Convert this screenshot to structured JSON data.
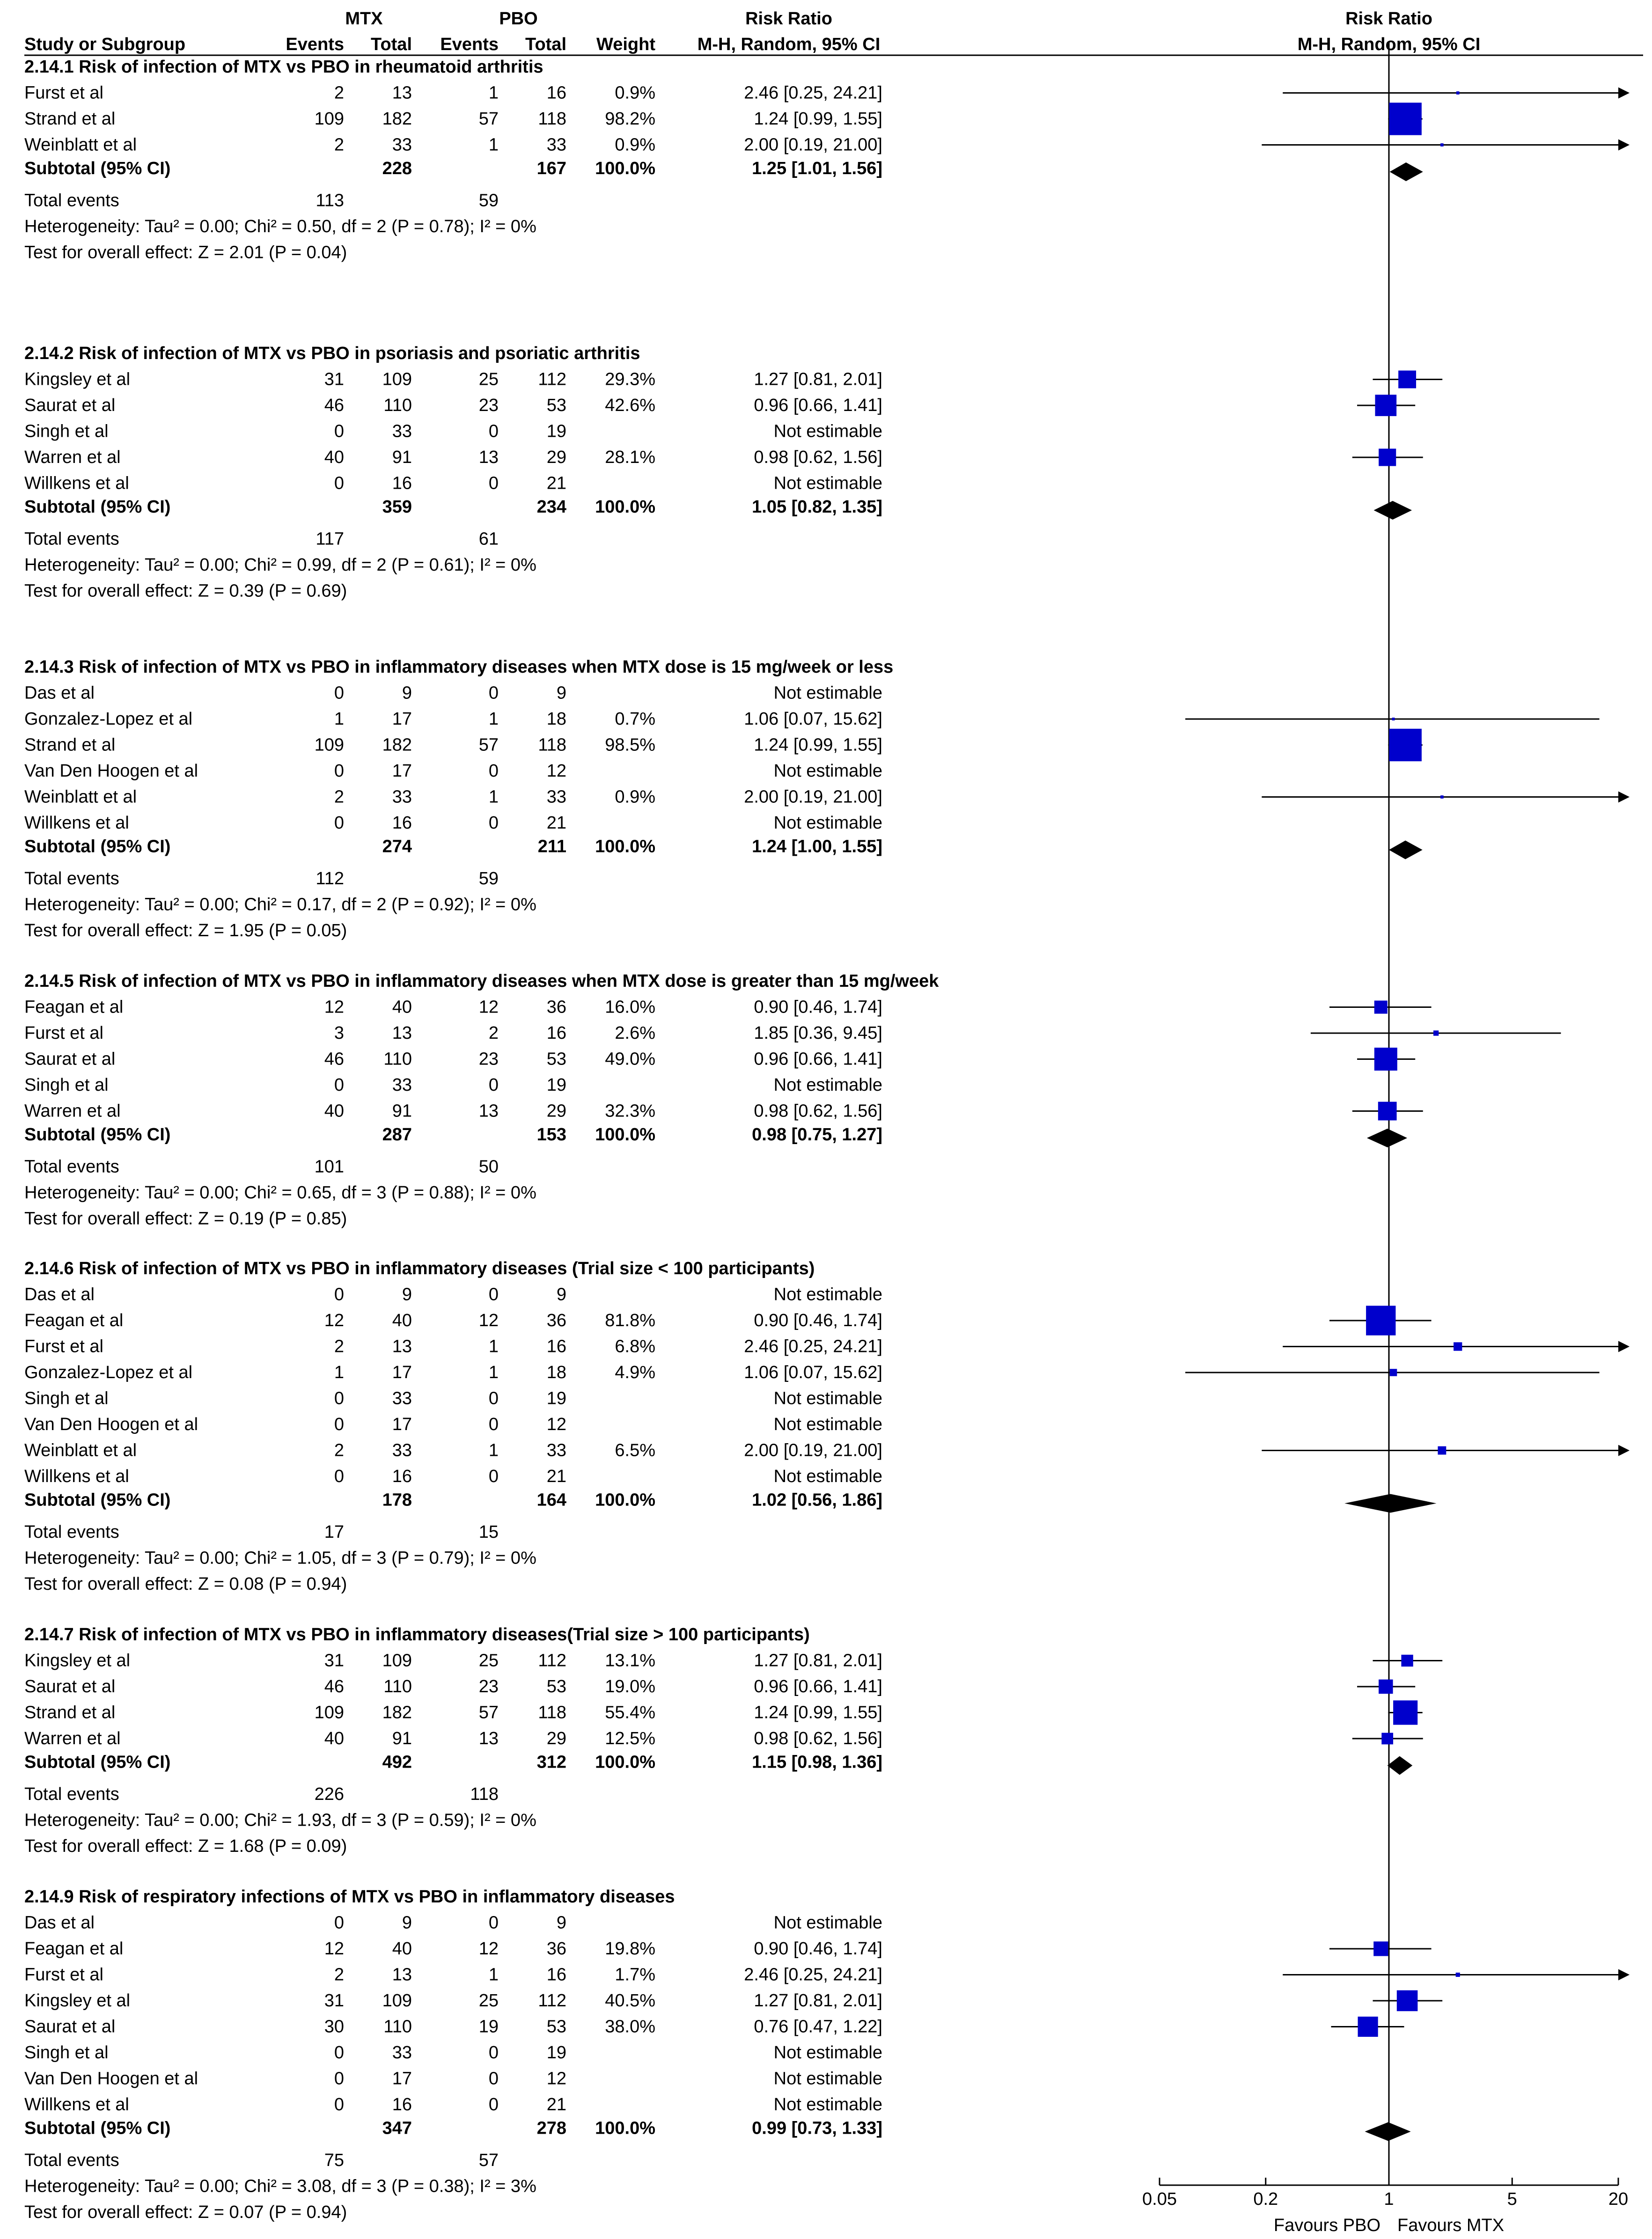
{
  "chart_data": {
    "type": "forest",
    "headers": {
      "study": "Study or Subgroup",
      "group1": "MTX",
      "group2": "PBO",
      "events": "Events",
      "total": "Total",
      "weight": "Weight",
      "rr_title": "Risk Ratio",
      "rr_method": "M-H, Random, 95% CI"
    },
    "axis": {
      "scale": "log",
      "ticks": [
        "0.05",
        "0.2",
        "1",
        "5",
        "20"
      ],
      "tick_values": [
        0.05,
        0.2,
        1,
        5,
        20
      ],
      "range": [
        0.05,
        20
      ],
      "left_label": "Favours PBO",
      "right_label": "Favours MTX"
    },
    "subgroups": [
      {
        "title": "2.14.1 Risk of infection of MTX vs PBO in rheumatoid arthritis",
        "studies": [
          {
            "name": "Furst et al",
            "e1": "2",
            "n1": "13",
            "e2": "1",
            "n2": "16",
            "weight": "0.9%",
            "ci": "2.46 [0.25, 24.21]",
            "rr": 2.46,
            "lo": 0.25,
            "hi": 24.21,
            "w": 0.9
          },
          {
            "name": "Strand et al",
            "e1": "109",
            "n1": "182",
            "e2": "57",
            "n2": "118",
            "weight": "98.2%",
            "ci": "1.24 [0.99, 1.55]",
            "rr": 1.24,
            "lo": 0.99,
            "hi": 1.55,
            "w": 98.2
          },
          {
            "name": "Weinblatt et al",
            "e1": "2",
            "n1": "33",
            "e2": "1",
            "n2": "33",
            "weight": "0.9%",
            "ci": "2.00 [0.19, 21.00]",
            "rr": 2.0,
            "lo": 0.19,
            "hi": 21.0,
            "w": 0.9
          }
        ],
        "subtotal": {
          "label": "Subtotal (95% CI)",
          "n1": "228",
          "n2": "167",
          "weight": "100.0%",
          "ci": "1.25 [1.01, 1.56]",
          "rr": 1.25,
          "lo": 1.01,
          "hi": 1.56
        },
        "total_events": {
          "label": "Total events",
          "e1": "113",
          "e2": "59"
        },
        "heterogeneity": "Heterogeneity: Tau² = 0.00; Chi² = 0.50, df = 2 (P = 0.78); I² = 0%",
        "overall": "Test for overall effect: Z = 2.01 (P = 0.04)"
      },
      {
        "title": "2.14.2 Risk of infection of MTX vs PBO in psoriasis and psoriatic arthritis",
        "studies": [
          {
            "name": "Kingsley et al",
            "e1": "31",
            "n1": "109",
            "e2": "25",
            "n2": "112",
            "weight": "29.3%",
            "ci": "1.27 [0.81, 2.01]",
            "rr": 1.27,
            "lo": 0.81,
            "hi": 2.01,
            "w": 29.3
          },
          {
            "name": "Saurat et al",
            "e1": "46",
            "n1": "110",
            "e2": "23",
            "n2": "53",
            "weight": "42.6%",
            "ci": "0.96 [0.66, 1.41]",
            "rr": 0.96,
            "lo": 0.66,
            "hi": 1.41,
            "w": 42.6
          },
          {
            "name": "Singh et al",
            "e1": "0",
            "n1": "33",
            "e2": "0",
            "n2": "19",
            "weight": "",
            "ci": "Not estimable"
          },
          {
            "name": "Warren et al",
            "e1": "40",
            "n1": "91",
            "e2": "13",
            "n2": "29",
            "weight": "28.1%",
            "ci": "0.98 [0.62, 1.56]",
            "rr": 0.98,
            "lo": 0.62,
            "hi": 1.56,
            "w": 28.1
          },
          {
            "name": "Willkens et al",
            "e1": "0",
            "n1": "16",
            "e2": "0",
            "n2": "21",
            "weight": "",
            "ci": "Not estimable"
          }
        ],
        "subtotal": {
          "label": "Subtotal (95% CI)",
          "n1": "359",
          "n2": "234",
          "weight": "100.0%",
          "ci": "1.05 [0.82, 1.35]",
          "rr": 1.05,
          "lo": 0.82,
          "hi": 1.35
        },
        "total_events": {
          "label": "Total events",
          "e1": "117",
          "e2": "61"
        },
        "heterogeneity": "Heterogeneity: Tau² = 0.00; Chi² = 0.99, df = 2 (P = 0.61); I² = 0%",
        "overall": "Test for overall effect: Z = 0.39 (P = 0.69)"
      },
      {
        "title": "2.14.3 Risk of infection of MTX vs PBO in inflammatory diseases when MTX dose is 15 mg/week or less",
        "studies": [
          {
            "name": "Das et al",
            "e1": "0",
            "n1": "9",
            "e2": "0",
            "n2": "9",
            "weight": "",
            "ci": "Not estimable"
          },
          {
            "name": "Gonzalez-Lopez et al",
            "e1": "1",
            "n1": "17",
            "e2": "1",
            "n2": "18",
            "weight": "0.7%",
            "ci": "1.06 [0.07, 15.62]",
            "rr": 1.06,
            "lo": 0.07,
            "hi": 15.62,
            "w": 0.7
          },
          {
            "name": "Strand et al",
            "e1": "109",
            "n1": "182",
            "e2": "57",
            "n2": "118",
            "weight": "98.5%",
            "ci": "1.24 [0.99, 1.55]",
            "rr": 1.24,
            "lo": 0.99,
            "hi": 1.55,
            "w": 98.5
          },
          {
            "name": "Van Den Hoogen et al",
            "e1": "0",
            "n1": "17",
            "e2": "0",
            "n2": "12",
            "weight": "",
            "ci": "Not estimable"
          },
          {
            "name": "Weinblatt et al",
            "e1": "2",
            "n1": "33",
            "e2": "1",
            "n2": "33",
            "weight": "0.9%",
            "ci": "2.00 [0.19, 21.00]",
            "rr": 2.0,
            "lo": 0.19,
            "hi": 21.0,
            "w": 0.9
          },
          {
            "name": "Willkens et al",
            "e1": "0",
            "n1": "16",
            "e2": "0",
            "n2": "21",
            "weight": "",
            "ci": "Not estimable"
          }
        ],
        "subtotal": {
          "label": "Subtotal (95% CI)",
          "n1": "274",
          "n2": "211",
          "weight": "100.0%",
          "ci": "1.24 [1.00, 1.55]",
          "rr": 1.24,
          "lo": 1.0,
          "hi": 1.55
        },
        "total_events": {
          "label": "Total events",
          "e1": "112",
          "e2": "59"
        },
        "heterogeneity": "Heterogeneity: Tau² = 0.00; Chi² = 0.17, df = 2 (P = 0.92); I² = 0%",
        "overall": "Test for overall effect: Z = 1.95 (P = 0.05)"
      },
      {
        "title": "2.14.5 Risk of infection of MTX vs PBO in inflammatory diseases when MTX dose is greater than 15 mg/week",
        "studies": [
          {
            "name": "Feagan et al",
            "e1": "12",
            "n1": "40",
            "e2": "12",
            "n2": "36",
            "weight": "16.0%",
            "ci": "0.90 [0.46, 1.74]",
            "rr": 0.9,
            "lo": 0.46,
            "hi": 1.74,
            "w": 16.0
          },
          {
            "name": "Furst et al",
            "e1": "3",
            "n1": "13",
            "e2": "2",
            "n2": "16",
            "weight": "2.6%",
            "ci": "1.85 [0.36, 9.45]",
            "rr": 1.85,
            "lo": 0.36,
            "hi": 9.45,
            "w": 2.6
          },
          {
            "name": "Saurat et al",
            "e1": "46",
            "n1": "110",
            "e2": "23",
            "n2": "53",
            "weight": "49.0%",
            "ci": "0.96 [0.66, 1.41]",
            "rr": 0.96,
            "lo": 0.66,
            "hi": 1.41,
            "w": 49.0
          },
          {
            "name": "Singh et al",
            "e1": "0",
            "n1": "33",
            "e2": "0",
            "n2": "19",
            "weight": "",
            "ci": "Not estimable"
          },
          {
            "name": "Warren et al",
            "e1": "40",
            "n1": "91",
            "e2": "13",
            "n2": "29",
            "weight": "32.3%",
            "ci": "0.98 [0.62, 1.56]",
            "rr": 0.98,
            "lo": 0.62,
            "hi": 1.56,
            "w": 32.3
          }
        ],
        "subtotal": {
          "label": "Subtotal (95% CI)",
          "n1": "287",
          "n2": "153",
          "weight": "100.0%",
          "ci": "0.98 [0.75, 1.27]",
          "rr": 0.98,
          "lo": 0.75,
          "hi": 1.27
        },
        "total_events": {
          "label": "Total events",
          "e1": "101",
          "e2": "50"
        },
        "heterogeneity": "Heterogeneity: Tau² = 0.00; Chi² = 0.65, df = 3 (P = 0.88); I² = 0%",
        "overall": "Test for overall effect: Z = 0.19 (P = 0.85)"
      },
      {
        "title": "2.14.6 Risk of infection of MTX vs PBO in inflammatory diseases (Trial size < 100 participants)",
        "studies": [
          {
            "name": "Das et al",
            "e1": "0",
            "n1": "9",
            "e2": "0",
            "n2": "9",
            "weight": "",
            "ci": "Not estimable"
          },
          {
            "name": "Feagan et al",
            "e1": "12",
            "n1": "40",
            "e2": "12",
            "n2": "36",
            "weight": "81.8%",
            "ci": "0.90 [0.46, 1.74]",
            "rr": 0.9,
            "lo": 0.46,
            "hi": 1.74,
            "w": 81.8
          },
          {
            "name": "Furst et al",
            "e1": "2",
            "n1": "13",
            "e2": "1",
            "n2": "16",
            "weight": "6.8%",
            "ci": "2.46 [0.25, 24.21]",
            "rr": 2.46,
            "lo": 0.25,
            "hi": 24.21,
            "w": 6.8
          },
          {
            "name": "Gonzalez-Lopez et al",
            "e1": "1",
            "n1": "17",
            "e2": "1",
            "n2": "18",
            "weight": "4.9%",
            "ci": "1.06 [0.07, 15.62]",
            "rr": 1.06,
            "lo": 0.07,
            "hi": 15.62,
            "w": 4.9
          },
          {
            "name": "Singh et al",
            "e1": "0",
            "n1": "33",
            "e2": "0",
            "n2": "19",
            "weight": "",
            "ci": "Not estimable"
          },
          {
            "name": "Van Den Hoogen et al",
            "e1": "0",
            "n1": "17",
            "e2": "0",
            "n2": "12",
            "weight": "",
            "ci": "Not estimable"
          },
          {
            "name": "Weinblatt et al",
            "e1": "2",
            "n1": "33",
            "e2": "1",
            "n2": "33",
            "weight": "6.5%",
            "ci": "2.00 [0.19, 21.00]",
            "rr": 2.0,
            "lo": 0.19,
            "hi": 21.0,
            "w": 6.5
          },
          {
            "name": "Willkens et al",
            "e1": "0",
            "n1": "16",
            "e2": "0",
            "n2": "21",
            "weight": "",
            "ci": "Not estimable"
          }
        ],
        "subtotal": {
          "label": "Subtotal (95% CI)",
          "n1": "178",
          "n2": "164",
          "weight": "100.0%",
          "ci": "1.02 [0.56, 1.86]",
          "rr": 1.02,
          "lo": 0.56,
          "hi": 1.86
        },
        "total_events": {
          "label": "Total events",
          "e1": "17",
          "e2": "15"
        },
        "heterogeneity": "Heterogeneity: Tau² = 0.00; Chi² = 1.05, df = 3 (P = 0.79); I² = 0%",
        "overall": "Test for overall effect: Z = 0.08 (P = 0.94)"
      },
      {
        "title": "2.14.7 Risk of infection of MTX vs PBO in inflammatory diseases(Trial size > 100 participants)",
        "studies": [
          {
            "name": "Kingsley et al",
            "e1": "31",
            "n1": "109",
            "e2": "25",
            "n2": "112",
            "weight": "13.1%",
            "ci": "1.27 [0.81, 2.01]",
            "rr": 1.27,
            "lo": 0.81,
            "hi": 2.01,
            "w": 13.1
          },
          {
            "name": "Saurat et al",
            "e1": "46",
            "n1": "110",
            "e2": "23",
            "n2": "53",
            "weight": "19.0%",
            "ci": "0.96 [0.66, 1.41]",
            "rr": 0.96,
            "lo": 0.66,
            "hi": 1.41,
            "w": 19.0
          },
          {
            "name": "Strand et al",
            "e1": "109",
            "n1": "182",
            "e2": "57",
            "n2": "118",
            "weight": "55.4%",
            "ci": "1.24 [0.99, 1.55]",
            "rr": 1.24,
            "lo": 0.99,
            "hi": 1.55,
            "w": 55.4
          },
          {
            "name": "Warren et al",
            "e1": "40",
            "n1": "91",
            "e2": "13",
            "n2": "29",
            "weight": "12.5%",
            "ci": "0.98 [0.62, 1.56]",
            "rr": 0.98,
            "lo": 0.62,
            "hi": 1.56,
            "w": 12.5
          }
        ],
        "subtotal": {
          "label": "Subtotal (95% CI)",
          "n1": "492",
          "n2": "312",
          "weight": "100.0%",
          "ci": "1.15 [0.98, 1.36]",
          "rr": 1.15,
          "lo": 0.98,
          "hi": 1.36
        },
        "total_events": {
          "label": "Total events",
          "e1": "226",
          "e2": "118"
        },
        "heterogeneity": "Heterogeneity: Tau² = 0.00; Chi² = 1.93, df = 3 (P = 0.59); I² = 0%",
        "overall": "Test for overall effect: Z = 1.68 (P = 0.09)"
      },
      {
        "title": "2.14.9 Risk of respiratory infections of MTX vs PBO in inflammatory diseases",
        "studies": [
          {
            "name": "Das et al",
            "e1": "0",
            "n1": "9",
            "e2": "0",
            "n2": "9",
            "weight": "",
            "ci": "Not estimable"
          },
          {
            "name": "Feagan et al",
            "e1": "12",
            "n1": "40",
            "e2": "12",
            "n2": "36",
            "weight": "19.8%",
            "ci": "0.90 [0.46, 1.74]",
            "rr": 0.9,
            "lo": 0.46,
            "hi": 1.74,
            "w": 19.8
          },
          {
            "name": "Furst et al",
            "e1": "2",
            "n1": "13",
            "e2": "1",
            "n2": "16",
            "weight": "1.7%",
            "ci": "2.46 [0.25, 24.21]",
            "rr": 2.46,
            "lo": 0.25,
            "hi": 24.21,
            "w": 1.7
          },
          {
            "name": "Kingsley et al",
            "e1": "31",
            "n1": "109",
            "e2": "25",
            "n2": "112",
            "weight": "40.5%",
            "ci": "1.27 [0.81, 2.01]",
            "rr": 1.27,
            "lo": 0.81,
            "hi": 2.01,
            "w": 40.5
          },
          {
            "name": "Saurat et al",
            "e1": "30",
            "n1": "110",
            "e2": "19",
            "n2": "53",
            "weight": "38.0%",
            "ci": "0.76 [0.47, 1.22]",
            "rr": 0.76,
            "lo": 0.47,
            "hi": 1.22,
            "w": 38.0
          },
          {
            "name": "Singh et al",
            "e1": "0",
            "n1": "33",
            "e2": "0",
            "n2": "19",
            "weight": "",
            "ci": "Not estimable"
          },
          {
            "name": "Van Den Hoogen et al",
            "e1": "0",
            "n1": "17",
            "e2": "0",
            "n2": "12",
            "weight": "",
            "ci": "Not estimable"
          },
          {
            "name": "Willkens et al",
            "e1": "0",
            "n1": "16",
            "e2": "0",
            "n2": "21",
            "weight": "",
            "ci": "Not estimable"
          }
        ],
        "subtotal": {
          "label": "Subtotal (95% CI)",
          "n1": "347",
          "n2": "278",
          "weight": "100.0%",
          "ci": "0.99 [0.73, 1.33]",
          "rr": 0.99,
          "lo": 0.73,
          "hi": 1.33
        },
        "total_events": {
          "label": "Total events",
          "e1": "75",
          "e2": "57"
        },
        "heterogeneity": "Heterogeneity: Tau² = 0.00; Chi² = 3.08, df = 3 (P = 0.38); I² = 3%",
        "overall": "Test for overall effect: Z = 0.07 (P = 0.94)"
      }
    ]
  },
  "colors": {
    "marker": "#0000cc",
    "diamond": "#000000",
    "text": "#000000"
  }
}
